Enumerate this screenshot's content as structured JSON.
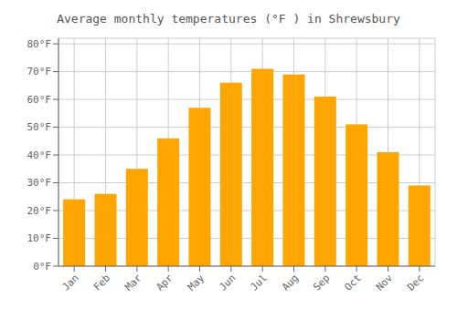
{
  "chart_data": {
    "type": "bar",
    "title": "Average monthly temperatures (°F ) in Shrewsbury",
    "categories": [
      "Jan",
      "Feb",
      "Mar",
      "Apr",
      "May",
      "Jun",
      "Jul",
      "Aug",
      "Sep",
      "Oct",
      "Nov",
      "Dec"
    ],
    "values": [
      24,
      26,
      35,
      46,
      57,
      66,
      71,
      69,
      61,
      51,
      41,
      29
    ],
    "color": "#FFA500",
    "ylim": [
      0,
      82
    ],
    "yticks": [
      {
        "value": 0,
        "label": "0°F"
      },
      {
        "value": 10,
        "label": "10°F"
      },
      {
        "value": 20,
        "label": "20°F"
      },
      {
        "value": 30,
        "label": "30°F"
      },
      {
        "value": 40,
        "label": "40°F"
      },
      {
        "value": 50,
        "label": "50°F"
      },
      {
        "value": 60,
        "label": "60°F"
      },
      {
        "value": 70,
        "label": "70°F"
      },
      {
        "value": 80,
        "label": "80°F"
      }
    ],
    "grid": true
  }
}
